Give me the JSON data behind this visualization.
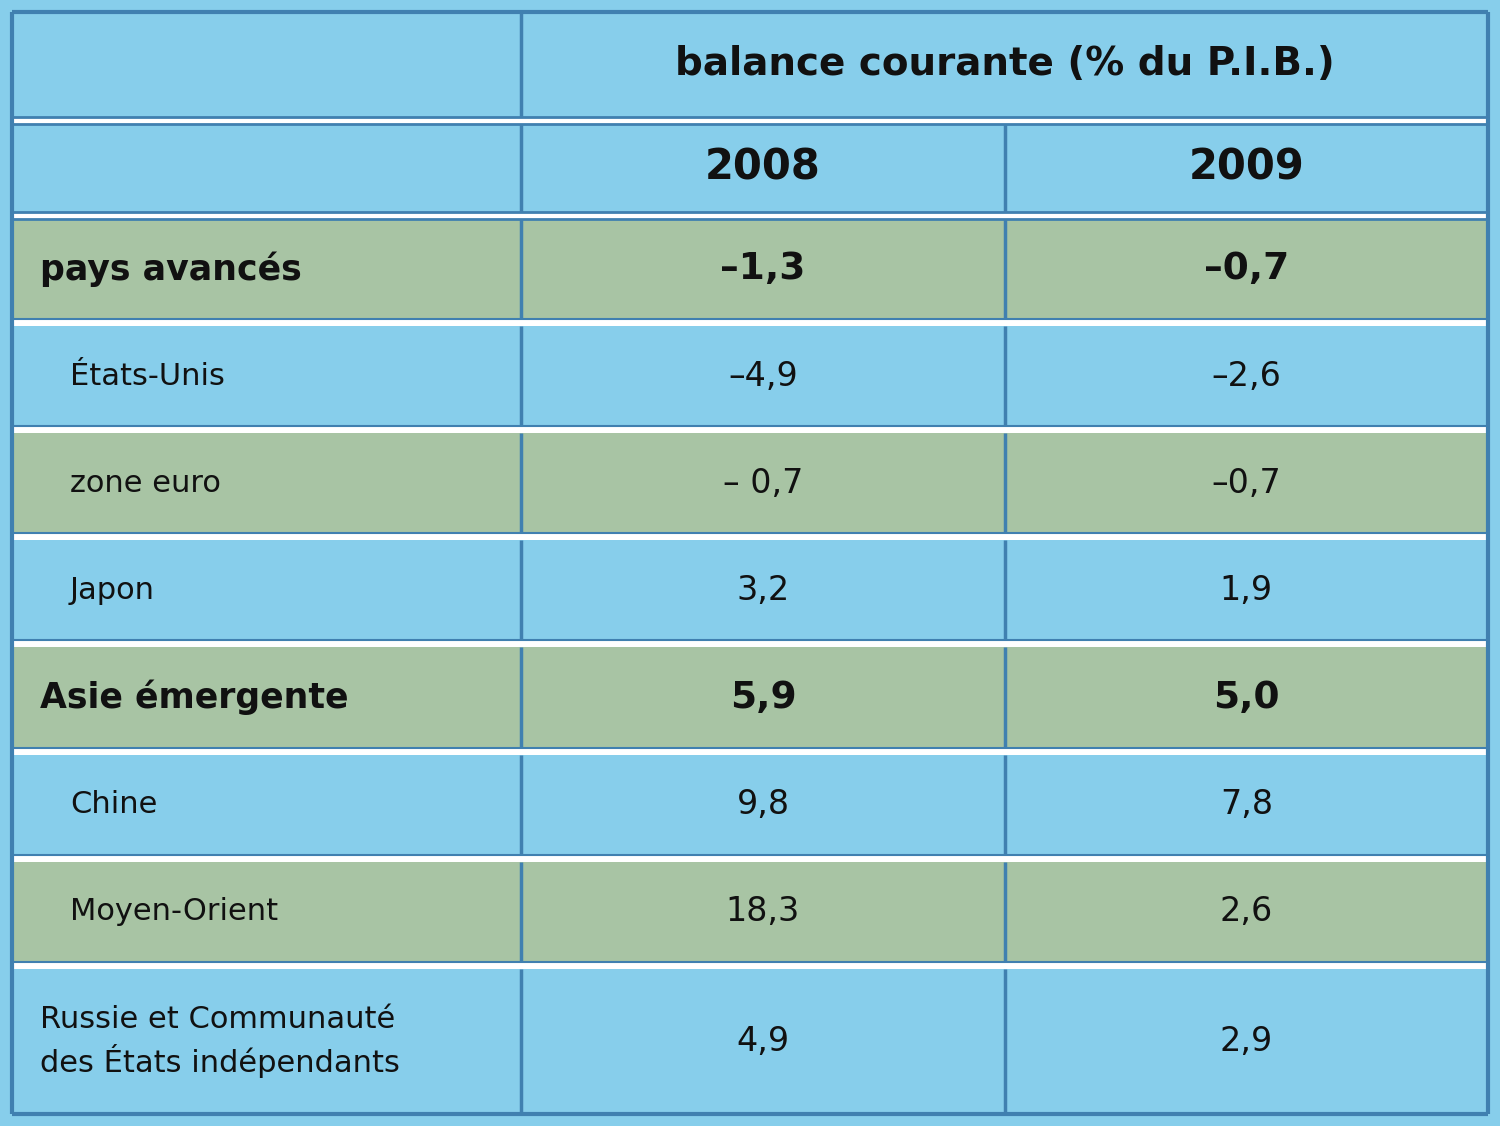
{
  "title_col": "balance courante (% du P.I.B.)",
  "col_2008": "2008",
  "col_2009": "2009",
  "rows": [
    {
      "label": "pays avancés",
      "indent": false,
      "bold": true,
      "val2008": "–1,3",
      "val2009": "–0,7",
      "bg": "green"
    },
    {
      "label": "États-Unis",
      "indent": true,
      "bold": false,
      "val2008": "–4,9",
      "val2009": "–2,6",
      "bg": "blue"
    },
    {
      "label": "zone euro",
      "indent": true,
      "bold": false,
      "val2008": "– 0,7",
      "val2009": "–0,7",
      "bg": "green"
    },
    {
      "label": "Japon",
      "indent": true,
      "bold": false,
      "val2008": "3,2",
      "val2009": "1,9",
      "bg": "blue"
    },
    {
      "label": "Asie émergente",
      "indent": false,
      "bold": true,
      "val2008": "5,9",
      "val2009": "5,0",
      "bg": "green"
    },
    {
      "label": "Chine",
      "indent": true,
      "bold": false,
      "val2008": "9,8",
      "val2009": "7,8",
      "bg": "blue"
    },
    {
      "label": "Moyen-Orient",
      "indent": true,
      "bold": false,
      "val2008": "18,3",
      "val2009": "2,6",
      "bg": "green"
    },
    {
      "label": "Russie et Communauté\ndes États indépendants",
      "indent": false,
      "bold": false,
      "val2008": "4,9",
      "val2009": "2,9",
      "bg": "blue"
    }
  ],
  "color_blue_bg": "#87CEEB",
  "color_green_bg": "#A8C4A4",
  "color_white_sep": "#FFFFFF",
  "color_border": "#4080B0",
  "color_text": "#111111"
}
